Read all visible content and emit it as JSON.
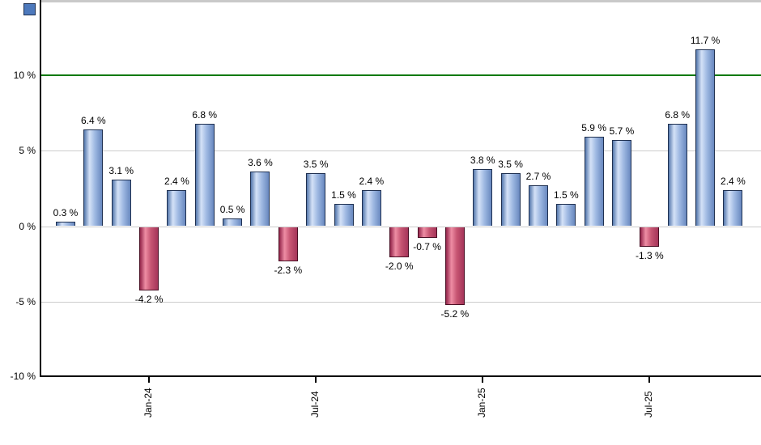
{
  "chart_data": {
    "type": "bar",
    "title": "",
    "xlabel": "",
    "ylabel": "",
    "values": [
      0.3,
      6.4,
      3.1,
      -4.2,
      2.4,
      6.8,
      0.5,
      3.6,
      -2.3,
      3.5,
      1.5,
      2.4,
      -2.0,
      -0.7,
      -5.2,
      3.8,
      3.5,
      2.7,
      1.5,
      5.9,
      5.7,
      -1.3,
      6.8,
      11.7,
      2.4
    ],
    "bar_labels": [
      "0.3 %",
      "6.4 %",
      "3.1 %",
      "-4.2 %",
      "2.4 %",
      "6.8 %",
      "0.5 %",
      "3.6 %",
      "-2.3 %",
      "3.5 %",
      "1.5 %",
      "2.4 %",
      "-2.0 %",
      "-0.7 %",
      "-5.2 %",
      "3.8 %",
      "3.5 %",
      "2.7 %",
      "1.5 %",
      "5.9 %",
      "5.7 %",
      "-1.3 %",
      "6.8 %",
      "11.7 %",
      "2.4 %"
    ],
    "x_tick_labels": [
      "Jan-24",
      "Jul-24",
      "Jan-25",
      "Jul-25"
    ],
    "x_tick_bar_indices": [
      3,
      9,
      15,
      21
    ],
    "y_tick_labels": [
      "10 %",
      "5 %",
      "0 %",
      "-5 %",
      "-10 %"
    ],
    "y_tick_values": [
      10,
      5,
      0,
      -5,
      -10
    ],
    "ylim": [
      -10,
      14.5
    ],
    "grid": true,
    "legend_position": "top-left",
    "reference_line": {
      "value": 10,
      "color": "#0e7a0e"
    },
    "colors": {
      "positive_bar_stops": [
        "#5578ad",
        "#d4e1f7",
        "#9fb9e2",
        "#6888bf"
      ],
      "positive_border": "#1f3050",
      "negative_bar_stops": [
        "#93254a",
        "#ee8da4",
        "#c75673",
        "#a53459"
      ],
      "negative_border": "#4a0f24",
      "gridline": "#cccccc",
      "axis": "#000000",
      "top_border": "#c9c9c9",
      "text": "#000000",
      "legend_marker": "#4d79bc"
    }
  }
}
